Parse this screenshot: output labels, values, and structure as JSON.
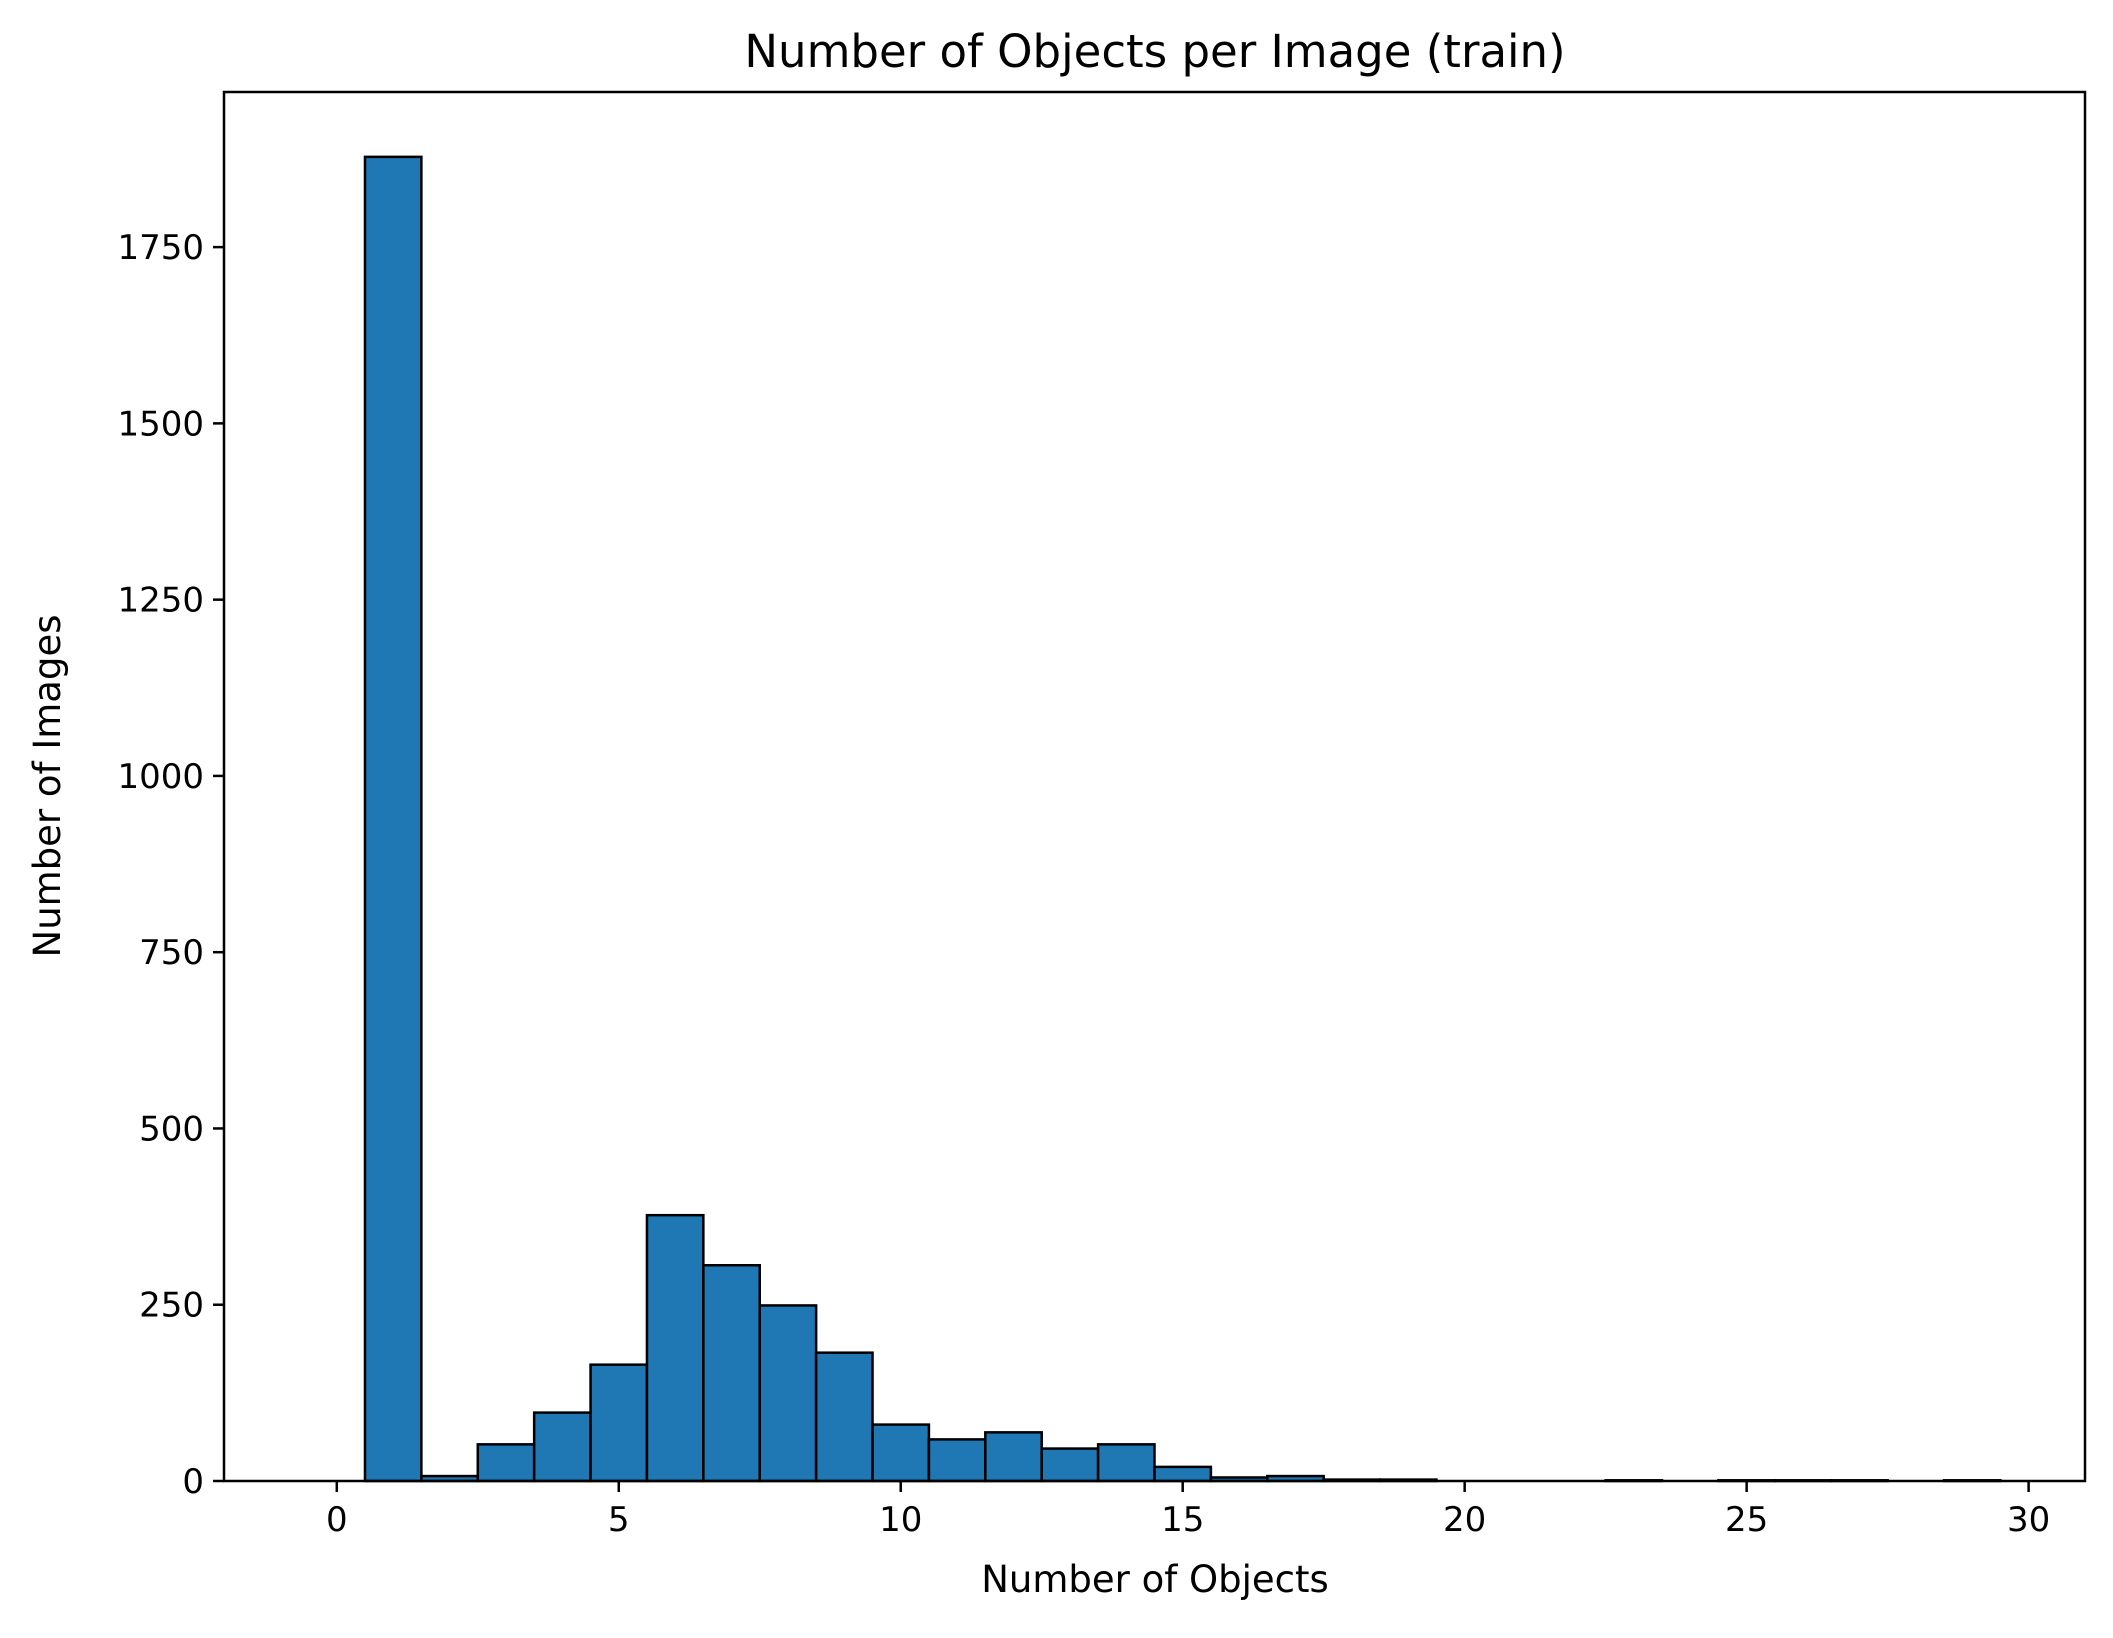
{
  "chart_data": {
    "type": "bar",
    "title": "Number of Objects per Image (train)",
    "xlabel": "Number of Objects",
    "ylabel": "Number of Images",
    "xlim": [
      -2,
      31
    ],
    "ylim": [
      0,
      1970
    ],
    "xticks": [
      0,
      5,
      10,
      15,
      20,
      25,
      30
    ],
    "yticks": [
      0,
      250,
      500,
      750,
      1000,
      1250,
      1500,
      1750
    ],
    "bin_width": 1,
    "grid": false,
    "legend": "none",
    "bar_color": "#1f77b4",
    "edge_color": "#000000",
    "bins": [
      {
        "x": 0,
        "value": 0
      },
      {
        "x": 1,
        "value": 1878
      },
      {
        "x": 2,
        "value": 7
      },
      {
        "x": 3,
        "value": 52
      },
      {
        "x": 4,
        "value": 97
      },
      {
        "x": 5,
        "value": 165
      },
      {
        "x": 6,
        "value": 377
      },
      {
        "x": 7,
        "value": 306
      },
      {
        "x": 8,
        "value": 249
      },
      {
        "x": 9,
        "value": 182
      },
      {
        "x": 10,
        "value": 80
      },
      {
        "x": 11,
        "value": 59
      },
      {
        "x": 12,
        "value": 69
      },
      {
        "x": 13,
        "value": 46
      },
      {
        "x": 14,
        "value": 52
      },
      {
        "x": 15,
        "value": 20
      },
      {
        "x": 16,
        "value": 5
      },
      {
        "x": 17,
        "value": 7
      },
      {
        "x": 18,
        "value": 2
      },
      {
        "x": 19,
        "value": 2
      },
      {
        "x": 20,
        "value": 0
      },
      {
        "x": 21,
        "value": 0
      },
      {
        "x": 22,
        "value": 0
      },
      {
        "x": 23,
        "value": 1
      },
      {
        "x": 24,
        "value": 0
      },
      {
        "x": 25,
        "value": 1
      },
      {
        "x": 26,
        "value": 1
      },
      {
        "x": 27,
        "value": 1
      },
      {
        "x": 28,
        "value": 0
      },
      {
        "x": 29,
        "value": 1
      }
    ]
  }
}
